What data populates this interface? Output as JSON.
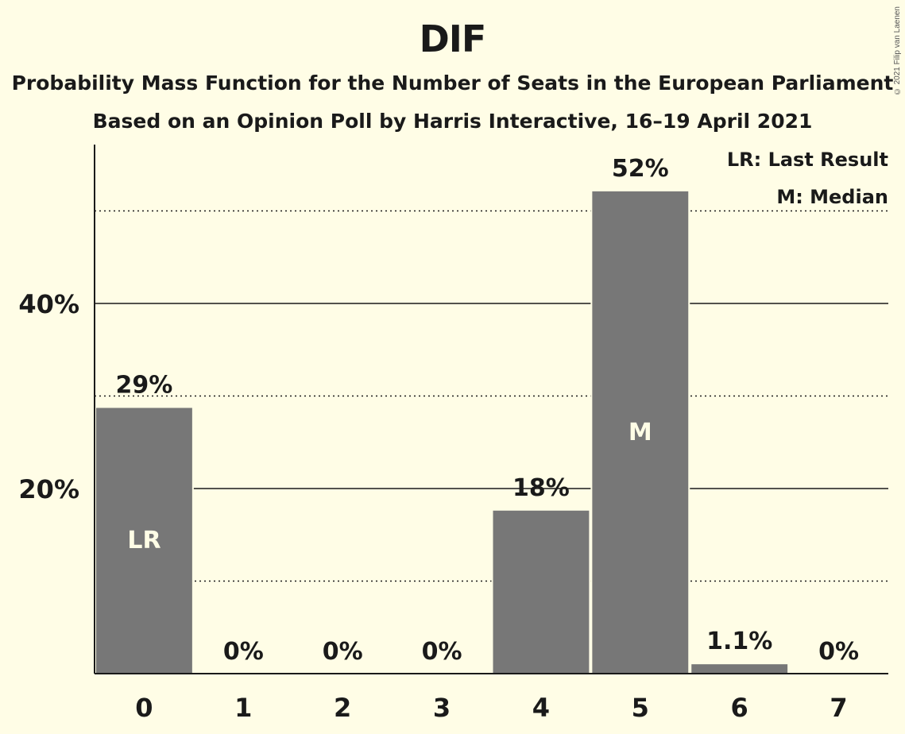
{
  "chart_data": {
    "type": "bar",
    "title": "DIF",
    "subtitle": "Probability Mass Function for the Number of Seats in the European Parliament",
    "subtitle2": "Based on an Opinion Poll by Harris Interactive, 16–19 April 2021",
    "copyright": "© 2021 Filip van Laenen",
    "categories": [
      "0",
      "1",
      "2",
      "3",
      "4",
      "5",
      "6",
      "7"
    ],
    "values": [
      28.8,
      0,
      0,
      0,
      17.7,
      52.2,
      1.1,
      0
    ],
    "data_labels": [
      "29%",
      "0%",
      "0%",
      "0%",
      "18%",
      "52%",
      "1.1%",
      "0%"
    ],
    "bar_annotations": [
      {
        "index": 0,
        "text": "LR"
      },
      {
        "index": 5,
        "text": "M"
      }
    ],
    "y_ticks": [
      {
        "value": 20,
        "label": "20%"
      },
      {
        "value": 40,
        "label": "40%"
      }
    ],
    "gridlines_solid": [
      20,
      40
    ],
    "gridlines_dotted": [
      10,
      30,
      50
    ],
    "ylim": [
      0,
      57
    ],
    "legend": [
      "LR: Last Result",
      "M: Median"
    ],
    "legend_position": "top-right",
    "bar_color": "#777777",
    "background_color": "#fffde6"
  }
}
